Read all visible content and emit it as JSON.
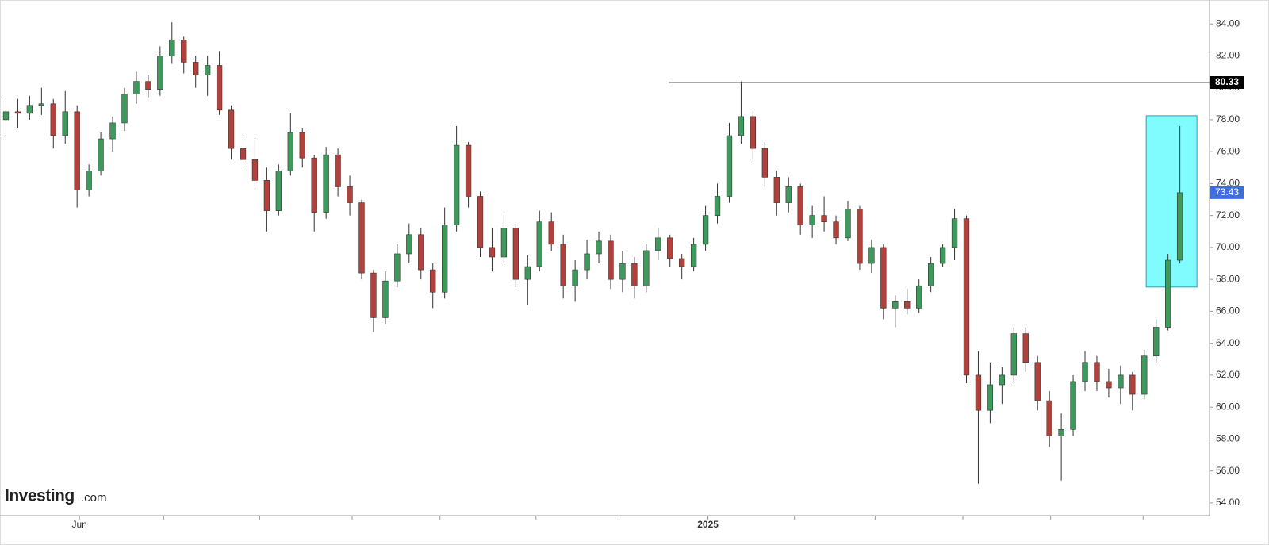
{
  "chart_data": {
    "type": "candlestick",
    "up_color": "#3d9a5c",
    "down_color": "#b3413b",
    "ylim": [
      53.2,
      85.3
    ],
    "yticks": [
      {
        "value": 54,
        "label": "54.00"
      },
      {
        "value": 56,
        "label": "56.00"
      },
      {
        "value": 58,
        "label": "58.00"
      },
      {
        "value": 60,
        "label": "60.00"
      },
      {
        "value": 62,
        "label": "62.00"
      },
      {
        "value": 64,
        "label": "64.00"
      },
      {
        "value": 66,
        "label": "66.00"
      },
      {
        "value": 68,
        "label": "68.00"
      },
      {
        "value": 70,
        "label": "70.00"
      },
      {
        "value": 72,
        "label": "72.00"
      },
      {
        "value": 74,
        "label": "74.00"
      },
      {
        "value": 76,
        "label": "76.00"
      },
      {
        "value": 78,
        "label": "78.00"
      },
      {
        "value": 80,
        "label": "80.00"
      },
      {
        "value": 82,
        "label": "82.00"
      },
      {
        "value": 84,
        "label": "84.00"
      }
    ],
    "xlim": [
      -0.5,
      101.5
    ],
    "xtick_positions": [
      6.2,
      13.3,
      21.4,
      29.2,
      36.6,
      44.7,
      51.7,
      59.2,
      66.5,
      73.3,
      80.7,
      88.1,
      95.9
    ],
    "xlabels": [
      {
        "value": 6.2,
        "label": "Jun"
      },
      {
        "value": 59.2,
        "label": "2025"
      }
    ],
    "open": [
      78.0,
      78.5,
      78.4,
      78.9,
      79.0,
      77.0,
      78.5,
      73.6,
      74.8,
      76.8,
      77.8,
      79.6,
      80.4,
      79.9,
      82.0,
      83.0,
      81.6,
      80.8,
      81.4,
      78.6,
      76.2,
      75.5,
      74.2,
      72.3,
      74.8,
      77.2,
      75.6,
      72.2,
      75.8,
      73.8,
      72.8,
      68.4,
      65.6,
      67.9,
      69.6,
      70.8,
      68.6,
      67.2,
      71.4,
      76.4,
      73.2,
      70.0,
      69.4,
      71.2,
      68.0,
      68.8,
      71.6,
      70.2,
      67.6,
      68.6,
      69.6,
      70.4,
      68.0,
      69.0,
      67.6,
      69.8,
      70.6,
      69.3,
      68.8,
      70.2,
      72.0,
      73.2,
      77.0,
      78.2,
      76.2,
      74.4,
      72.8,
      73.8,
      71.4,
      72.0,
      71.6,
      70.6,
      72.4,
      69.0,
      70.0,
      66.2,
      66.6,
      66.2,
      67.6,
      69.0,
      70.0,
      71.8,
      62.0,
      59.8,
      61.4,
      62.0,
      64.6,
      62.8,
      60.4,
      58.2,
      58.6,
      61.6,
      62.8,
      61.6,
      61.2,
      62.0,
      60.8,
      63.2,
      65.0,
      69.2
    ],
    "high": [
      79.2,
      79.3,
      79.5,
      80.0,
      79.3,
      79.8,
      78.9,
      75.2,
      77.2,
      78.2,
      80.0,
      81.0,
      80.8,
      82.6,
      84.1,
      83.2,
      82.0,
      82.0,
      82.3,
      78.9,
      76.8,
      77.0,
      75.0,
      75.2,
      78.4,
      77.5,
      75.8,
      76.3,
      76.2,
      74.5,
      73.0,
      68.6,
      68.5,
      70.2,
      71.5,
      71.2,
      69.0,
      72.5,
      77.6,
      76.6,
      73.5,
      71.2,
      72.0,
      71.5,
      69.5,
      72.3,
      72.2,
      70.8,
      69.2,
      70.5,
      71.0,
      70.8,
      69.8,
      69.4,
      70.2,
      71.2,
      70.8,
      69.6,
      70.6,
      72.6,
      74.0,
      77.8,
      80.4,
      78.5,
      76.6,
      74.8,
      74.4,
      74.0,
      72.6,
      73.2,
      72.0,
      72.9,
      72.6,
      70.5,
      70.2,
      67.0,
      67.4,
      68.0,
      69.4,
      70.2,
      72.4,
      72.0,
      63.5,
      62.8,
      62.5,
      65.0,
      65.0,
      63.2,
      61.0,
      59.6,
      62.0,
      63.5,
      63.2,
      62.4,
      62.6,
      62.2,
      63.6,
      65.5,
      69.6,
      77.6
    ],
    "low": [
      77.0,
      77.5,
      78.0,
      78.3,
      76.2,
      76.5,
      72.5,
      73.2,
      74.5,
      76.0,
      77.3,
      79.0,
      79.4,
      79.5,
      81.5,
      80.9,
      80.0,
      79.5,
      78.3,
      75.5,
      74.8,
      73.8,
      71.0,
      72.0,
      74.5,
      75.0,
      71.0,
      71.8,
      73.2,
      72.0,
      68.0,
      64.7,
      65.2,
      67.5,
      69.0,
      68.0,
      66.2,
      66.8,
      71.0,
      72.5,
      69.4,
      68.5,
      69.0,
      67.5,
      66.4,
      68.5,
      69.8,
      66.8,
      66.6,
      68.0,
      69.0,
      67.4,
      67.2,
      66.8,
      67.2,
      69.2,
      68.8,
      68.0,
      68.5,
      69.8,
      71.5,
      72.8,
      76.5,
      75.5,
      73.8,
      72.0,
      72.2,
      70.8,
      70.6,
      71.0,
      70.2,
      70.4,
      68.6,
      68.4,
      65.5,
      65.0,
      65.8,
      65.9,
      67.2,
      68.8,
      69.2,
      61.5,
      55.2,
      59.0,
      60.2,
      61.6,
      62.2,
      59.8,
      57.5,
      55.4,
      58.2,
      61.0,
      61.0,
      60.6,
      60.2,
      59.8,
      60.5,
      62.8,
      64.8,
      69.0
    ],
    "close": [
      78.5,
      78.4,
      78.9,
      79.0,
      77.0,
      78.5,
      73.6,
      74.8,
      76.8,
      77.8,
      79.6,
      80.4,
      79.9,
      82.0,
      83.0,
      81.6,
      80.8,
      81.4,
      78.6,
      76.2,
      75.5,
      74.2,
      72.3,
      74.8,
      77.2,
      75.6,
      72.2,
      75.8,
      73.8,
      72.8,
      68.4,
      65.6,
      67.9,
      69.6,
      70.8,
      68.6,
      67.2,
      71.4,
      76.4,
      73.2,
      70.0,
      69.4,
      71.2,
      68.0,
      68.8,
      71.6,
      70.2,
      67.6,
      68.6,
      69.6,
      70.4,
      68.0,
      69.0,
      67.6,
      69.8,
      70.6,
      69.3,
      68.8,
      70.2,
      72.0,
      73.2,
      77.0,
      78.2,
      76.2,
      74.4,
      72.8,
      73.8,
      71.4,
      72.0,
      71.6,
      70.6,
      72.4,
      69.0,
      70.0,
      66.2,
      66.6,
      66.2,
      67.6,
      69.0,
      70.0,
      71.8,
      62.0,
      59.8,
      61.4,
      62.0,
      64.6,
      62.8,
      60.4,
      58.2,
      58.6,
      61.6,
      62.8,
      61.6,
      61.2,
      62.0,
      60.8,
      63.2,
      65.0,
      69.2,
      73.43
    ],
    "level": {
      "value": 80.33,
      "label": "80.33",
      "start": 55.9,
      "color": "#000000"
    },
    "last_price_color": "#3f6ce0",
    "highlight": {
      "xlim": [
        96.16,
        100.44
      ],
      "ylim": [
        67.52,
        78.25
      ],
      "color": "#80fcff",
      "stroke": "#2a9db8"
    },
    "logo": {
      "brand": "Investing",
      "suffix": ".com"
    }
  }
}
